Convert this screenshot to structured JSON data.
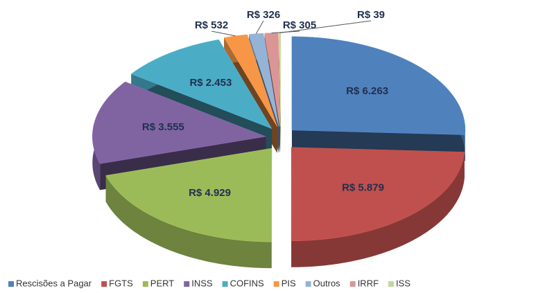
{
  "chart_data": {
    "type": "pie",
    "categories": [
      "Rescisões a Pagar",
      "FGTS",
      "PERT",
      "INSS",
      "COFINS",
      "PIS",
      "Outros",
      "IRRF",
      "ISS"
    ],
    "values": [
      6263,
      5879,
      4929,
      3555,
      2453,
      532,
      326,
      305,
      39
    ],
    "value_labels": [
      "R$ 6.263",
      "R$ 5.879",
      "R$ 4.929",
      "R$ 3.555",
      "R$ 2.453",
      "R$ 532",
      "R$ 326",
      "R$ 305",
      "R$ 39"
    ],
    "colors": [
      "#4f81bd",
      "#c0504d",
      "#9bbb59",
      "#8064a2",
      "#4bacc6",
      "#f79646",
      "#95b3d7",
      "#d99694",
      "#c3d69b"
    ],
    "legend": "bottom"
  }
}
